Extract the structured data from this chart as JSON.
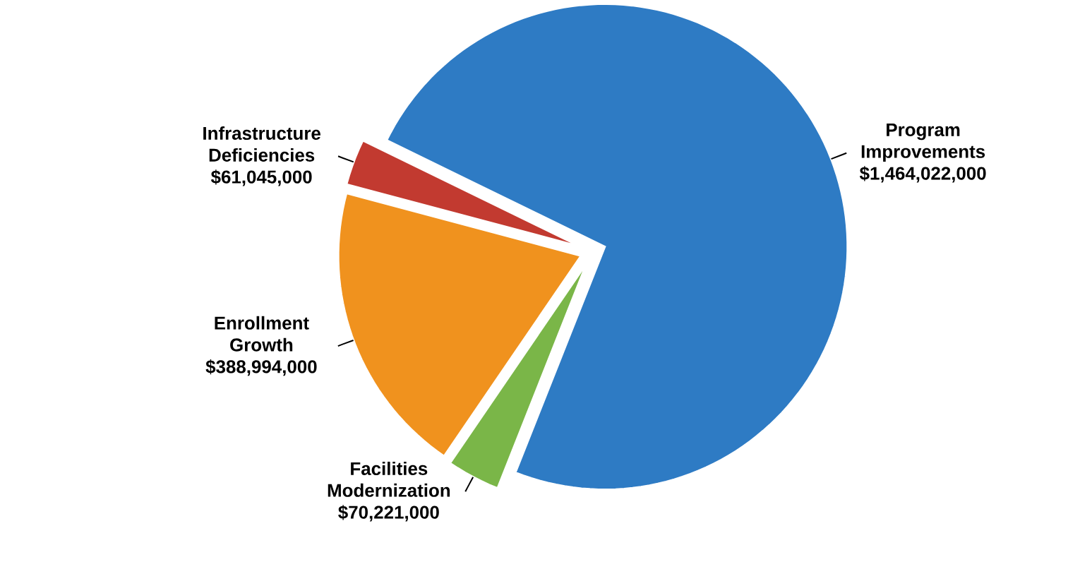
{
  "chart_data": {
    "type": "pie",
    "categories": [
      "Infrastructure Deficiencies",
      "Enrollment Growth",
      "Facilities Modernization",
      "Program Improvements"
    ],
    "values": [
      61045000,
      388994000,
      70221000,
      1464022000
    ],
    "value_labels": [
      "$61,045,000",
      "$388,994,000",
      "$70,221,000",
      "$1,464,022,000"
    ],
    "colors": [
      "#c23a30",
      "#f0921e",
      "#7ab648",
      "#2e7bc4"
    ]
  }
}
